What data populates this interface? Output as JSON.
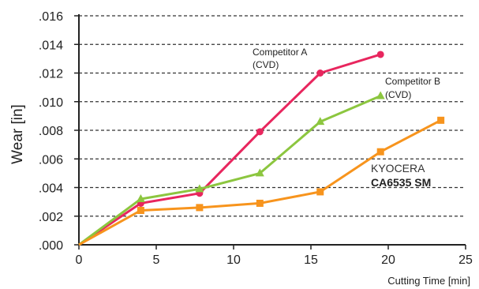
{
  "chart_data": {
    "type": "line",
    "xlabel": "Cutting Time [min]",
    "ylabel": "Wear [in]",
    "xlim": [
      0,
      25
    ],
    "ylim": [
      0,
      0.016
    ],
    "x_ticks": [
      "0",
      "5",
      "10",
      "15",
      "20",
      "25"
    ],
    "y_ticks": [
      ".000",
      ".002",
      ".004",
      ".006",
      ".008",
      ".010",
      ".012",
      ".014",
      ".016"
    ],
    "grid": "horizontal-dashed",
    "series": [
      {
        "name": "Competitor A",
        "name_line2": "(CVD)",
        "color": "#e8265e",
        "marker": "circle",
        "x": [
          0,
          4,
          7.8,
          11.7,
          15.6,
          19.5
        ],
        "y": [
          0,
          0.0029,
          0.0036,
          0.0079,
          0.012,
          0.0133
        ]
      },
      {
        "name": "Competitor B",
        "name_line2": "(CVD)",
        "color": "#8cc63f",
        "marker": "triangle",
        "x": [
          0,
          4,
          7.8,
          11.7,
          15.6,
          19.5
        ],
        "y": [
          0,
          0.0032,
          0.0039,
          0.005,
          0.0086,
          0.0104
        ]
      },
      {
        "name": "KYOCERA",
        "name_line2": "CA6535 SM",
        "color": "#f7941d",
        "marker": "square",
        "x": [
          0,
          4,
          7.8,
          11.7,
          15.6,
          19.5,
          23.4
        ],
        "y": [
          0,
          0.0024,
          0.0026,
          0.0029,
          0.0037,
          0.0065,
          0.0087
        ]
      }
    ]
  }
}
